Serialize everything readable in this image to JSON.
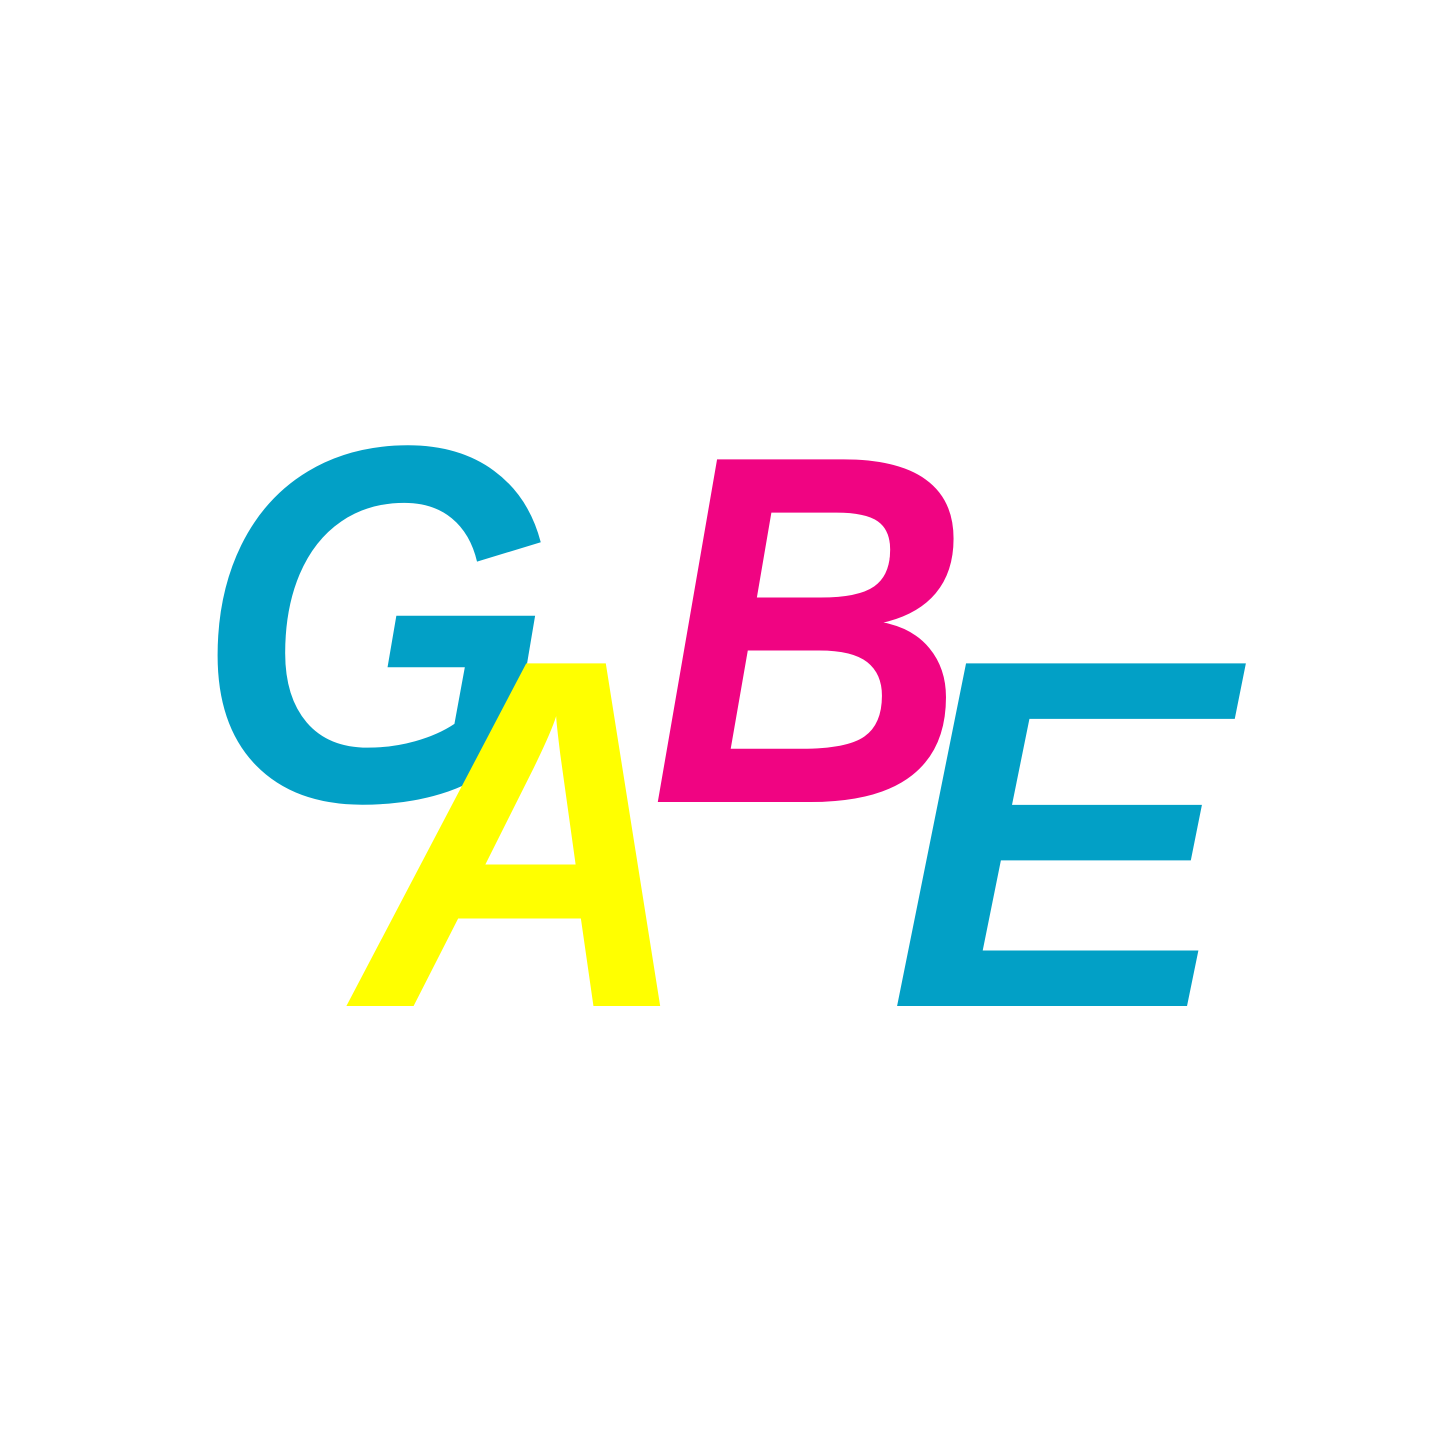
{
  "logo": {
    "letters": [
      {
        "char": "G",
        "color": "#02A0C6"
      },
      {
        "char": "B",
        "color": "#F00482"
      },
      {
        "char": "E",
        "color": "#02A0C6"
      },
      {
        "char": "A",
        "color": "#FFFF00"
      }
    ]
  }
}
